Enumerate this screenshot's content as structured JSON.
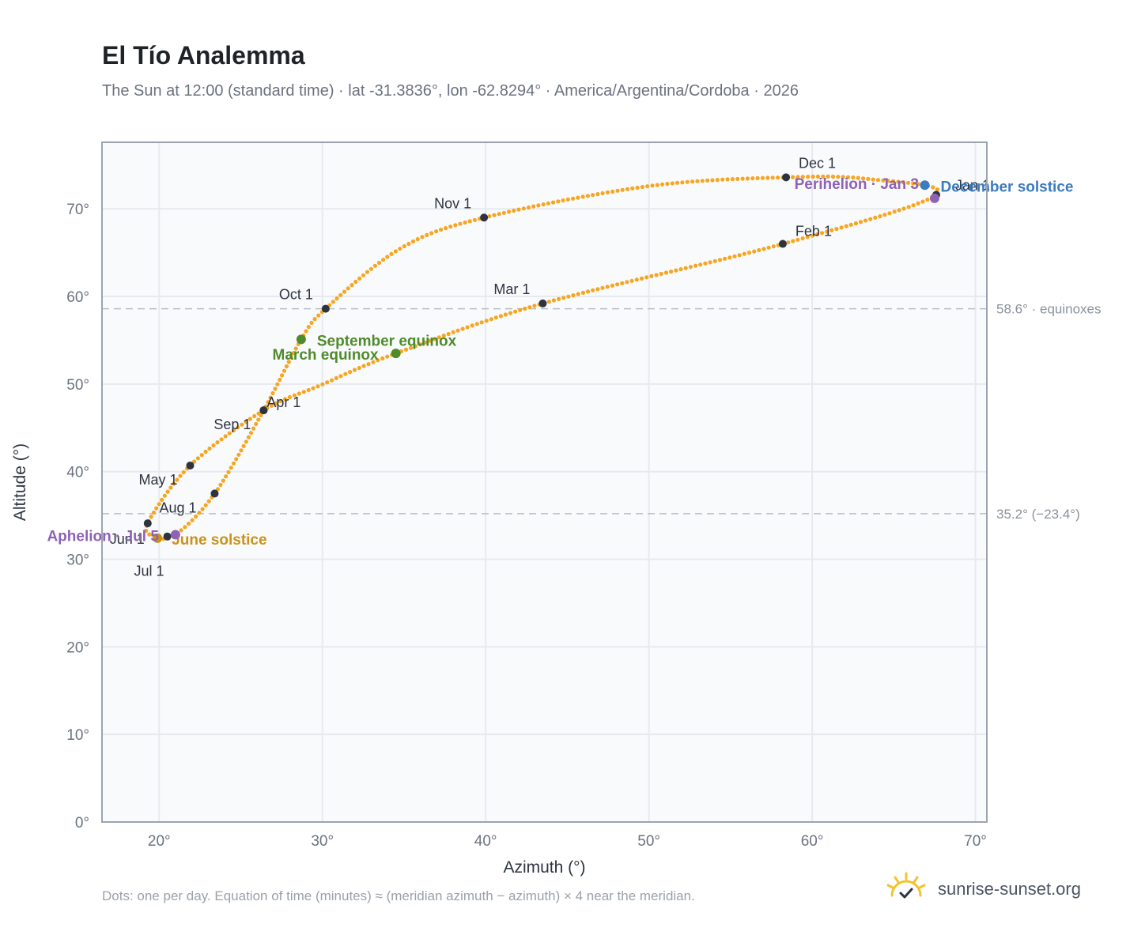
{
  "header": {
    "title": "El Tío Analemma",
    "subtitle": "The Sun at 12:00 (standard time) · lat -31.3836°, lon -62.8294° · America/Argentina/Cordoba · 2026"
  },
  "footer": {
    "note": "Dots: one per day. Equation of time (minutes) ≈ (meridian azimuth − azimuth) × 4 near the meridian.",
    "brand": "sunrise-sunset.org"
  },
  "colors": {
    "curve": "#f5a623",
    "month_marker": "#2d3440",
    "equinox": "#4f8a2b",
    "june_solstice": "#c99317",
    "december_solstice": "#3b7bbf",
    "apsis": "#8e62b5",
    "grid": "#e6eaef",
    "plot_bg": "#f9fafc",
    "reference_line": "#b8bec6",
    "brand_sun": "#f2c230"
  },
  "chart_data": {
    "type": "scatter",
    "xlabel": "Azimuth (°)",
    "ylabel": "Altitude (°)",
    "xlim": [
      16.5,
      70.7
    ],
    "ylim": [
      0,
      77.6
    ],
    "xticks": [
      "20°",
      "30°",
      "40°",
      "50°",
      "60°",
      "70°"
    ],
    "yticks": [
      "0°",
      "10°",
      "20°",
      "30°",
      "40°",
      "50°",
      "60°",
      "70°"
    ],
    "grid": true,
    "points_description": "one point per day",
    "reference_lines": [
      {
        "y": 58.6,
        "label": "58.6° · equinoxes"
      },
      {
        "y": 35.2,
        "label": "35.2° (−23.4°)"
      }
    ],
    "analemma_path": [
      {
        "x": 67.6,
        "y": 71.6
      },
      {
        "x": 58.2,
        "y": 66.0
      },
      {
        "x": 43.5,
        "y": 59.2
      },
      {
        "x": 34.5,
        "y": 53.5
      },
      {
        "x": 29.8,
        "y": 49.8
      },
      {
        "x": 26.4,
        "y": 47.0
      },
      {
        "x": 21.9,
        "y": 40.7
      },
      {
        "x": 19.3,
        "y": 34.1
      },
      {
        "x": 19.8,
        "y": 32.6
      },
      {
        "x": 21.0,
        "y": 32.8
      },
      {
        "x": 23.4,
        "y": 37.5
      },
      {
        "x": 26.4,
        "y": 47.0
      },
      {
        "x": 28.7,
        "y": 55.1
      },
      {
        "x": 30.2,
        "y": 58.6
      },
      {
        "x": 34.8,
        "y": 65.5
      },
      {
        "x": 39.9,
        "y": 69.0
      },
      {
        "x": 50.0,
        "y": 72.6
      },
      {
        "x": 58.4,
        "y": 73.6
      },
      {
        "x": 63.5,
        "y": 73.4
      },
      {
        "x": 67.6,
        "y": 71.6
      }
    ],
    "month_markers": [
      {
        "label": "Jan 1",
        "x": 67.6,
        "y": 71.6
      },
      {
        "label": "Feb 1",
        "x": 58.2,
        "y": 66.0
      },
      {
        "label": "Mar 1",
        "x": 43.5,
        "y": 59.2
      },
      {
        "label": "Apr 1",
        "x": 26.4,
        "y": 47.0
      },
      {
        "label": "May 1",
        "x": 21.9,
        "y": 40.7
      },
      {
        "label": "Jun 1",
        "x": 19.3,
        "y": 34.1
      },
      {
        "label": "Jul 1",
        "x": 20.5,
        "y": 32.6
      },
      {
        "label": "Aug 1",
        "x": 23.4,
        "y": 37.5
      },
      {
        "label": "Sep 1",
        "x": 26.4,
        "y": 47.0
      },
      {
        "label": "Oct 1",
        "x": 30.2,
        "y": 58.6
      },
      {
        "label": "Nov 1",
        "x": 39.9,
        "y": 69.0
      },
      {
        "label": "Dec 1",
        "x": 58.4,
        "y": 73.6
      }
    ],
    "events": [
      {
        "label": "March equinox",
        "x": 34.5,
        "y": 53.5,
        "kind": "equinox"
      },
      {
        "label": "September equinox",
        "x": 28.7,
        "y": 55.1,
        "kind": "equinox"
      },
      {
        "label": "June solstice",
        "x": 19.9,
        "y": 32.4,
        "kind": "june_solstice"
      },
      {
        "label": "December solstice",
        "x": 66.9,
        "y": 72.7,
        "kind": "december_solstice"
      },
      {
        "label": "Aphelion · Jul 5",
        "x": 21.0,
        "y": 32.8,
        "kind": "apsis"
      },
      {
        "label": "Perihelion · Jan 3",
        "x": 67.5,
        "y": 71.2,
        "kind": "apsis"
      }
    ]
  }
}
